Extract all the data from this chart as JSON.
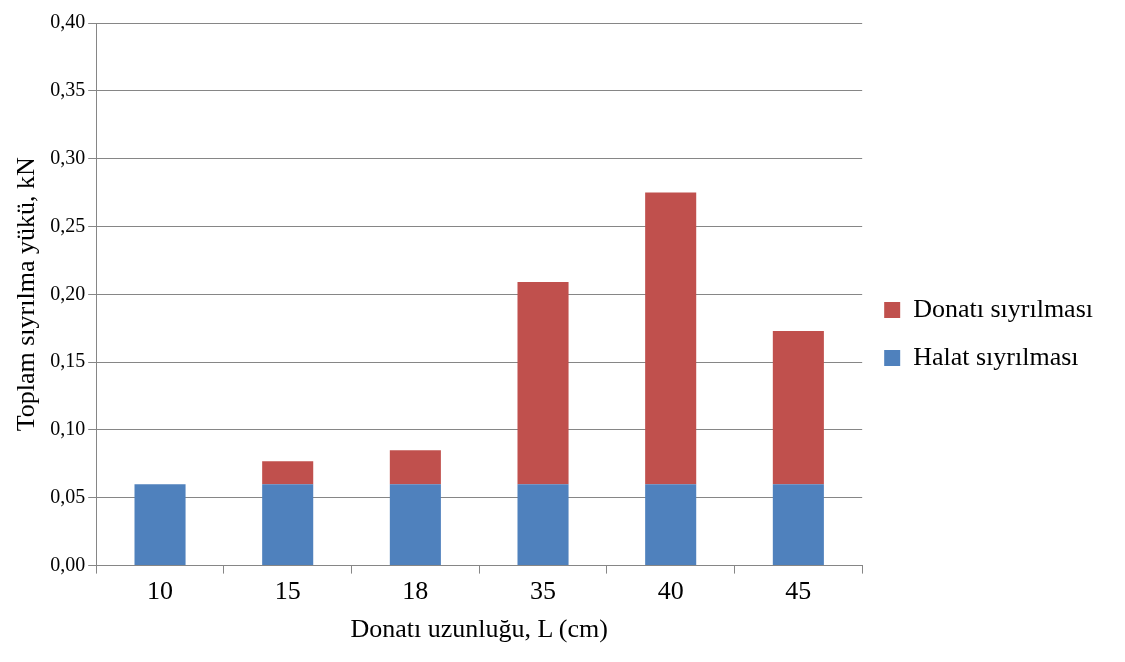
{
  "chart_data": {
    "type": "bar",
    "stacked": true,
    "xlabel": "Donatı uzunluğu, L (cm)",
    "ylabel": "Toplam sıyrılma yükü, kN",
    "categories": [
      "10",
      "15",
      "18",
      "35",
      "40",
      "45"
    ],
    "series": [
      {
        "name": "Halat sıyrılması",
        "color": "#4f81bd",
        "values": [
          0.06,
          0.06,
          0.06,
          0.06,
          0.06,
          0.06
        ]
      },
      {
        "name": "Donatı sıyrılması",
        "color": "#c0504d",
        "values": [
          0,
          0.017,
          0.025,
          0.149,
          0.215,
          0.113
        ]
      }
    ],
    "ylim": [
      0,
      0.4
    ],
    "yticks": [
      {
        "value": 0,
        "label": "0,00"
      },
      {
        "value": 0.05,
        "label": "0,05"
      },
      {
        "value": 0.1,
        "label": "0,10"
      },
      {
        "value": 0.15,
        "label": "0,15"
      },
      {
        "value": 0.2,
        "label": "0,20"
      },
      {
        "value": 0.25,
        "label": "0,25"
      },
      {
        "value": 0.3,
        "label": "0,30"
      },
      {
        "value": 0.35,
        "label": "0,35"
      },
      {
        "value": 0.4,
        "label": "0,40"
      }
    ],
    "grid": "y",
    "legend": "right"
  }
}
